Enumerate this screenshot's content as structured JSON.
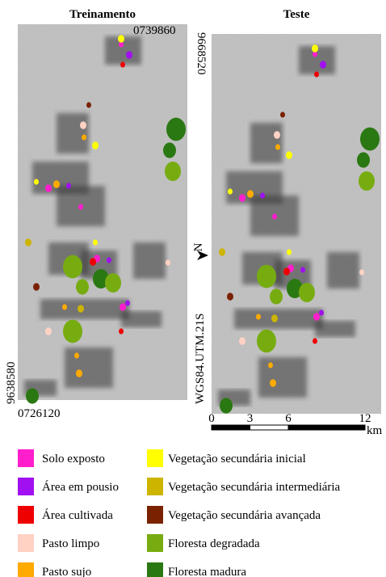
{
  "panels": [
    {
      "title": "Treinamento"
    },
    {
      "title": "Teste"
    }
  ],
  "coordinates": {
    "east_top": "0739860",
    "north_top": "9668520",
    "north_bottom": "9638580",
    "east_bottom": "0726120"
  },
  "north_label": "N",
  "projection": "WGS84.UTM.21S",
  "scale": {
    "ticks": [
      0,
      3,
      6,
      12
    ],
    "unit": "km"
  },
  "legend": [
    {
      "label": "Solo exposto",
      "color": "#ff1ecc"
    },
    {
      "label": "Área em pousio",
      "color": "#a010f0"
    },
    {
      "label": "Área cultivada",
      "color": "#ee0000"
    },
    {
      "label": "Pasto limpo",
      "color": "#ffd2c4"
    },
    {
      "label": "Pasto sujo",
      "color": "#ffaa00"
    },
    {
      "label": "Vegetação secundária inicial",
      "color": "#ffff00"
    },
    {
      "label": "Vegetação secundária intermediária",
      "color": "#ccb400"
    },
    {
      "label": "Vegetação secundária avançada",
      "color": "#7a2200"
    },
    {
      "label": "Floresta degradada",
      "color": "#77ac10"
    },
    {
      "label": "Floresta madura",
      "color": "#2a7812"
    }
  ]
}
